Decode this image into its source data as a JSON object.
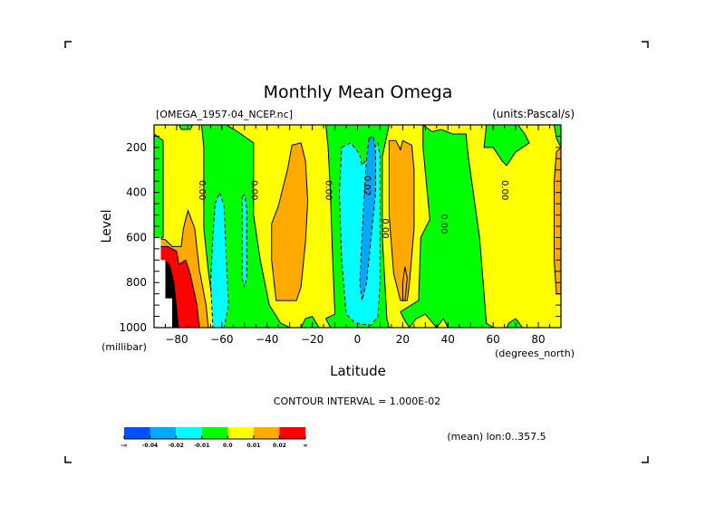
{
  "chart_data": {
    "type": "heatmap",
    "subtype": "filled-contour",
    "title": "Monthly Mean Omega",
    "file_label": "[OMEGA_1957-04_NCEP.nc]",
    "units_label": "(units:Pascal/s)",
    "xlabel": "Latitude",
    "x_units": "(degrees_north)",
    "ylabel": "Level",
    "y_units": "(millibar)",
    "xlim": [
      -90,
      90
    ],
    "ylim": [
      1000,
      100
    ],
    "x_ticks": [
      -80,
      -60,
      -40,
      -20,
      0,
      20,
      40,
      60,
      80
    ],
    "y_ticks": [
      200,
      400,
      600,
      800,
      1000
    ],
    "contour_interval_text": "CONTOUR INTERVAL = 1.000E-02",
    "mean_text": "(mean) lon:0..357.5",
    "legend": {
      "placement": "bottom-left",
      "bins": [
        {
          "color": "#0050ff",
          "range": "< -0.04"
        },
        {
          "color": "#00a8ff",
          "range": "-0.04 to -0.02"
        },
        {
          "color": "#00ffff",
          "range": "-0.02 to -0.01"
        },
        {
          "color": "#00ff00",
          "range": "-0.01 to 0.0"
        },
        {
          "color": "#ffff00",
          "range": "0.0 to 0.01"
        },
        {
          "color": "#ffaa00",
          "range": "0.01 to 0.02"
        },
        {
          "color": "#ff0000",
          "range": "> 0.02"
        }
      ],
      "labels": [
        "-∞",
        "-0.04",
        "-0.02",
        "-0.01",
        "0.0",
        "0.01",
        "0.02",
        "∞"
      ]
    },
    "contour_labels": [
      {
        "text": "0.00",
        "lat": -70,
        "level": 390
      },
      {
        "text": "0.00",
        "lat": -47,
        "level": 390
      },
      {
        "text": "0.00",
        "lat": -14,
        "level": 390
      },
      {
        "text": "0.02",
        "lat": 3,
        "level": 370
      },
      {
        "text": "0.00",
        "lat": 11,
        "level": 560
      },
      {
        "text": "0.00",
        "lat": 37,
        "level": 540
      },
      {
        "text": "0.00",
        "lat": 64,
        "level": 390
      }
    ],
    "regions": [
      {
        "name": "yellow-background",
        "color": "#ffff00",
        "pts": [
          [
            -90,
            100
          ],
          [
            90,
            100
          ],
          [
            90,
            1000
          ],
          [
            -90,
            1000
          ]
        ]
      },
      {
        "name": "green-sh-edge",
        "color": "#00ff00",
        "pts": [
          [
            -90,
            140
          ],
          [
            -86,
            170
          ],
          [
            -86,
            600
          ],
          [
            -90,
            610
          ]
        ]
      },
      {
        "name": "green-sh-top",
        "color": "#00ff00",
        "pts": [
          [
            -79,
            100
          ],
          [
            -73,
            100
          ],
          [
            -74,
            120
          ],
          [
            -78,
            120
          ]
        ]
      },
      {
        "name": "green-sh-band",
        "color": "#00ff00",
        "pts": [
          [
            -69,
            100
          ],
          [
            -58,
            100
          ],
          [
            -53,
            130
          ],
          [
            -46,
            180
          ],
          [
            -46,
            500
          ],
          [
            -43,
            700
          ],
          [
            -39,
            900
          ],
          [
            -34,
            980
          ],
          [
            -30,
            1000
          ],
          [
            -62,
            1000
          ],
          [
            -64,
            900
          ],
          [
            -66,
            750
          ],
          [
            -68,
            560
          ],
          [
            -68,
            200
          ]
        ]
      },
      {
        "name": "green-sh-small",
        "color": "#00ff00",
        "pts": [
          [
            -23,
            960
          ],
          [
            -20,
            950
          ],
          [
            -17,
            1000
          ],
          [
            -25,
            1000
          ]
        ]
      },
      {
        "name": "green-eq-band",
        "color": "#00ff00",
        "pts": [
          [
            -14,
            100
          ],
          [
            14,
            100
          ],
          [
            11,
            240
          ],
          [
            11,
            600
          ],
          [
            13,
            960
          ],
          [
            14,
            1000
          ],
          [
            -12,
            1000
          ],
          [
            -14,
            960
          ],
          [
            -10,
            940
          ],
          [
            -11,
            700
          ],
          [
            -12,
            400
          ],
          [
            -13,
            200
          ]
        ]
      },
      {
        "name": "green-nh-band",
        "color": "#00ff00",
        "pts": [
          [
            29,
            100
          ],
          [
            33,
            130
          ],
          [
            37,
            120
          ],
          [
            42,
            140
          ],
          [
            48,
            140
          ],
          [
            49,
            240
          ],
          [
            54,
            600
          ],
          [
            57,
            980
          ],
          [
            60,
            1000
          ],
          [
            40,
            1000
          ],
          [
            38,
            960
          ],
          [
            35,
            1000
          ],
          [
            30,
            940
          ],
          [
            26,
            960
          ],
          [
            23,
            1000
          ],
          [
            21,
            970
          ],
          [
            19,
            930
          ],
          [
            27,
            880
          ],
          [
            28,
            600
          ],
          [
            32,
            520
          ],
          [
            29,
            200
          ]
        ]
      },
      {
        "name": "green-nh-top",
        "color": "#00ff00",
        "pts": [
          [
            57,
            100
          ],
          [
            71,
            100
          ],
          [
            74,
            140
          ],
          [
            76,
            180
          ],
          [
            70,
            220
          ],
          [
            66,
            280
          ],
          [
            64,
            260
          ],
          [
            60,
            200
          ],
          [
            56,
            200
          ]
        ]
      },
      {
        "name": "green-nh-bottom",
        "color": "#00ff00",
        "pts": [
          [
            67,
            980
          ],
          [
            70,
            960
          ],
          [
            73,
            1000
          ],
          [
            66,
            1000
          ]
        ]
      },
      {
        "name": "green-far-edge",
        "color": "#00ff00",
        "pts": [
          [
            87,
            100
          ],
          [
            90,
            100
          ],
          [
            90,
            200
          ],
          [
            88,
            160
          ]
        ]
      },
      {
        "name": "cyan-sh-1",
        "color": "#00ffff",
        "pts": [
          [
            -63,
            450
          ],
          [
            -61,
            400
          ],
          [
            -59,
            460
          ],
          [
            -58,
            700
          ],
          [
            -57,
            900
          ],
          [
            -59,
            1000
          ],
          [
            -64,
            1000
          ],
          [
            -65,
            800
          ],
          [
            -64,
            600
          ]
        ]
      },
      {
        "name": "cyan-sh-2",
        "color": "#00ffff",
        "pts": [
          [
            -51,
            420
          ],
          [
            -50,
            410
          ],
          [
            -49,
            470
          ],
          [
            -49,
            780
          ],
          [
            -50,
            820
          ],
          [
            -51,
            780
          ],
          [
            -51,
            500
          ]
        ]
      },
      {
        "name": "cyan-eq",
        "color": "#00ffff",
        "pts": [
          [
            -7,
            200
          ],
          [
            -3,
            180
          ],
          [
            1,
            230
          ],
          [
            2,
            280
          ],
          [
            9,
            180
          ],
          [
            10,
            240
          ],
          [
            10,
            500
          ],
          [
            10,
            800
          ],
          [
            9,
            950
          ],
          [
            6,
            990
          ],
          [
            -1,
            980
          ],
          [
            -5,
            940
          ],
          [
            -7,
            700
          ],
          [
            -8,
            400
          ]
        ]
      },
      {
        "name": "blue-eq",
        "color": "#00a8ff",
        "pts": [
          [
            5,
            160
          ],
          [
            7,
            150
          ],
          [
            8,
            220
          ],
          [
            8,
            400
          ],
          [
            6,
            600
          ],
          [
            4,
            800
          ],
          [
            2,
            880
          ],
          [
            1,
            800
          ],
          [
            2,
            600
          ],
          [
            3,
            400
          ],
          [
            4,
            250
          ]
        ]
      },
      {
        "name": "orange-sh-outer",
        "color": "#ffaa00",
        "pts": [
          [
            -90,
            600
          ],
          [
            -85,
            610
          ],
          [
            -82,
            640
          ],
          [
            -78,
            640
          ],
          [
            -77,
            560
          ],
          [
            -75,
            480
          ],
          [
            -72,
            560
          ],
          [
            -70,
            740
          ],
          [
            -67,
            900
          ],
          [
            -66,
            1000
          ],
          [
            -90,
            1000
          ]
        ]
      },
      {
        "name": "orange-sh-mid",
        "color": "#ffaa00",
        "pts": [
          [
            -35,
            460
          ],
          [
            -31,
            300
          ],
          [
            -29,
            190
          ],
          [
            -25,
            180
          ],
          [
            -23,
            260
          ],
          [
            -22,
            440
          ],
          [
            -23,
            620
          ],
          [
            -25,
            820
          ],
          [
            -27,
            880
          ],
          [
            -36,
            880
          ],
          [
            -38,
            700
          ],
          [
            -38,
            540
          ]
        ]
      },
      {
        "name": "orange-nh-1",
        "color": "#ffaa00",
        "pts": [
          [
            14,
            170
          ],
          [
            17,
            170
          ],
          [
            19,
            210
          ],
          [
            20,
            170
          ],
          [
            24,
            190
          ],
          [
            25,
            300
          ],
          [
            25,
            560
          ],
          [
            23,
            800
          ],
          [
            22,
            880
          ],
          [
            19,
            880
          ],
          [
            16,
            760
          ],
          [
            14,
            500
          ]
        ]
      },
      {
        "name": "orange-nh-2",
        "color": "#ffaa00",
        "pts": [
          [
            20,
            800
          ],
          [
            21,
            730
          ],
          [
            22,
            780
          ],
          [
            21,
            880
          ],
          [
            20,
            880
          ]
        ]
      },
      {
        "name": "orange-nh-edge",
        "color": "#ffaa00",
        "pts": [
          [
            90,
            200
          ],
          [
            88,
            220
          ],
          [
            87,
            350
          ],
          [
            87,
            700
          ],
          [
            88,
            850
          ],
          [
            90,
            850
          ]
        ]
      },
      {
        "name": "red-sh",
        "color": "#ff0000",
        "pts": [
          [
            -90,
            640
          ],
          [
            -84,
            640
          ],
          [
            -80,
            660
          ],
          [
            -79,
            720
          ],
          [
            -76,
            700
          ],
          [
            -74,
            760
          ],
          [
            -71,
            900
          ],
          [
            -70,
            1000
          ],
          [
            -90,
            1000
          ]
        ]
      },
      {
        "name": "white-missing",
        "color": "#ffffff",
        "pts": [
          [
            -90,
            600
          ],
          [
            -87,
            600
          ],
          [
            -87,
            700
          ],
          [
            -85,
            700
          ],
          [
            -85,
            870
          ],
          [
            -82,
            870
          ],
          [
            -82,
            1000
          ],
          [
            -90,
            1000
          ]
        ]
      },
      {
        "name": "black-dense-contours",
        "color": "#000000",
        "pts": [
          [
            -85,
            700
          ],
          [
            -83,
            720
          ],
          [
            -81,
            800
          ],
          [
            -80,
            900
          ],
          [
            -79,
            1000
          ],
          [
            -82,
            1000
          ],
          [
            -82,
            870
          ],
          [
            -85,
            870
          ]
        ]
      }
    ]
  }
}
